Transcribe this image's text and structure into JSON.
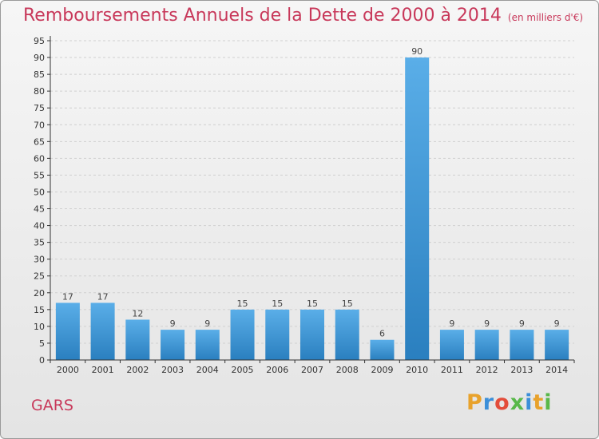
{
  "header": {
    "title": "Remboursements Annuels de la Dette de 2000 à 2014",
    "unit": "(en milliers d'€)"
  },
  "footer": {
    "commune": "GARS",
    "brand": "Proxiti"
  },
  "colors": {
    "title": "#c8385a",
    "bar_top": "#5aaee8",
    "bar_bottom": "#2a7fbf",
    "grid": "#d0d0d0",
    "brand_letters": [
      "#e8a22c",
      "#3c8fd9",
      "#e34d3b",
      "#59b84a",
      "#3c8fd9",
      "#e8a22c",
      "#59b84a"
    ]
  },
  "chart_data": {
    "type": "bar",
    "categories": [
      "2000",
      "2001",
      "2002",
      "2003",
      "2004",
      "2005",
      "2006",
      "2007",
      "2008",
      "2009",
      "2010",
      "2011",
      "2012",
      "2013",
      "2014"
    ],
    "values": [
      17,
      17,
      12,
      9,
      9,
      15,
      15,
      15,
      15,
      6,
      90,
      9,
      9,
      9,
      9
    ],
    "ylim": [
      0,
      95
    ],
    "ytick_step": 5,
    "grid": true
  }
}
